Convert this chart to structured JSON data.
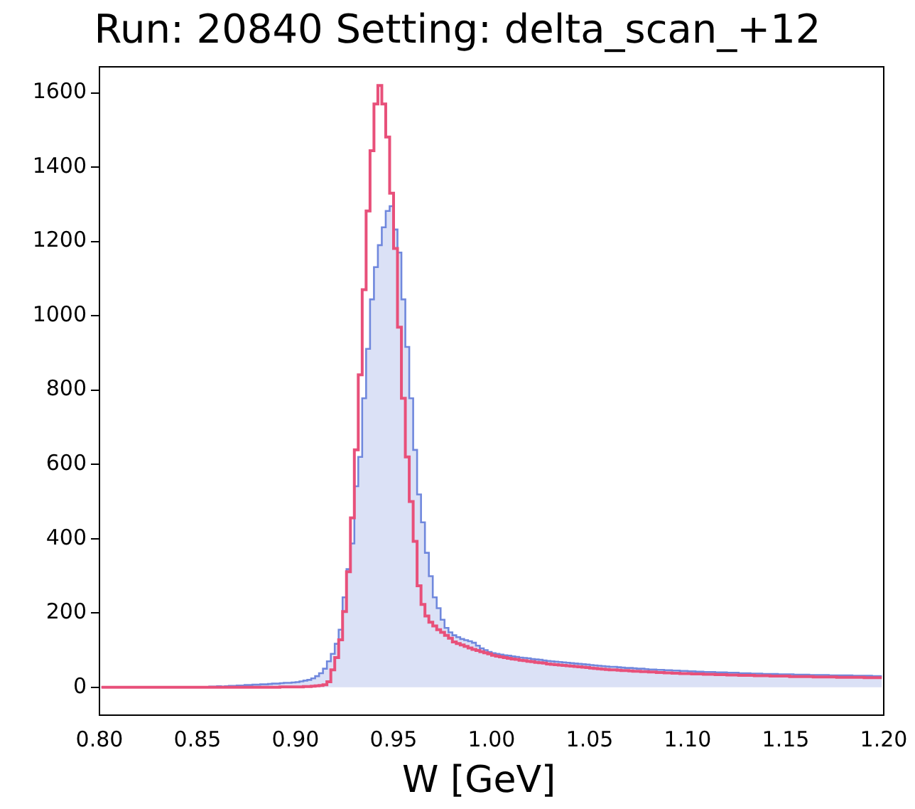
{
  "chart_data": {
    "type": "histogram",
    "title": "Run: 20840 Setting: delta_scan_+12",
    "xlabel": "W [GeV]",
    "bins": [
      0.8,
      0.802,
      0.804,
      0.806,
      0.808,
      0.81,
      0.812,
      0.814,
      0.816,
      0.818,
      0.82,
      0.822,
      0.824,
      0.826,
      0.828,
      0.83,
      0.832,
      0.834,
      0.836,
      0.838,
      0.84,
      0.842,
      0.844,
      0.846,
      0.848,
      0.85,
      0.852,
      0.854,
      0.856,
      0.858,
      0.86,
      0.862,
      0.864,
      0.866,
      0.868,
      0.87,
      0.872,
      0.874,
      0.876,
      0.878,
      0.88,
      0.882,
      0.884,
      0.886,
      0.888,
      0.89,
      0.892,
      0.894,
      0.896,
      0.898,
      0.9,
      0.902,
      0.904,
      0.906,
      0.908,
      0.91,
      0.912,
      0.914,
      0.916,
      0.918,
      0.92,
      0.922,
      0.924,
      0.926,
      0.928,
      0.93,
      0.932,
      0.934,
      0.936,
      0.938,
      0.94,
      0.942,
      0.944,
      0.946,
      0.948,
      0.95,
      0.952,
      0.954,
      0.956,
      0.958,
      0.96,
      0.962,
      0.964,
      0.966,
      0.968,
      0.97,
      0.972,
      0.974,
      0.976,
      0.978,
      0.98,
      0.982,
      0.984,
      0.986,
      0.988,
      0.99,
      0.992,
      0.994,
      0.996,
      0.998,
      1.0,
      1.002,
      1.004,
      1.006,
      1.008,
      1.01,
      1.012,
      1.014,
      1.016,
      1.018,
      1.02,
      1.022,
      1.024,
      1.026,
      1.028,
      1.03,
      1.032,
      1.034,
      1.036,
      1.038,
      1.04,
      1.042,
      1.044,
      1.046,
      1.048,
      1.05,
      1.052,
      1.054,
      1.056,
      1.058,
      1.06,
      1.062,
      1.064,
      1.066,
      1.068,
      1.07,
      1.072,
      1.074,
      1.076,
      1.078,
      1.08,
      1.082,
      1.084,
      1.086,
      1.088,
      1.09,
      1.092,
      1.094,
      1.096,
      1.098,
      1.1,
      1.102,
      1.104,
      1.106,
      1.108,
      1.11,
      1.112,
      1.114,
      1.116,
      1.118,
      1.12,
      1.122,
      1.124,
      1.126,
      1.128,
      1.13,
      1.132,
      1.134,
      1.136,
      1.138,
      1.14,
      1.142,
      1.144,
      1.146,
      1.148,
      1.15,
      1.152,
      1.154,
      1.156,
      1.158,
      1.16,
      1.162,
      1.164,
      1.166,
      1.168,
      1.17,
      1.172,
      1.174,
      1.176,
      1.178,
      1.18,
      1.182,
      1.184,
      1.186,
      1.188,
      1.19,
      1.192,
      1.194,
      1.196,
      1.198,
      1.2
    ],
    "series": [
      {
        "color": "#7088dd",
        "values": [
          0,
          0,
          0,
          0,
          0,
          0,
          0,
          0,
          0,
          0,
          0,
          0,
          0,
          0,
          0,
          0,
          0,
          0,
          0,
          0,
          0,
          0,
          0,
          0,
          0,
          1,
          0,
          1,
          2,
          2,
          3,
          2,
          3,
          4,
          4,
          5,
          5,
          6,
          6,
          7,
          7,
          8,
          8,
          9,
          10,
          10,
          11,
          12,
          12,
          13,
          14,
          16,
          18,
          20,
          24,
          30,
          38,
          50,
          70,
          90,
          117,
          155,
          242,
          318,
          387,
          541,
          620,
          778,
          911,
          1044,
          1131,
          1190,
          1238,
          1282,
          1295,
          1232,
          1170,
          1044,
          916,
          778,
          639,
          519,
          444,
          362,
          299,
          242,
          213,
          182,
          160,
          148,
          140,
          135,
          130,
          127,
          124,
          120,
          112,
          105,
          100,
          95,
          92,
          90,
          88,
          86,
          85,
          83,
          82,
          80,
          79,
          78,
          76,
          75,
          74,
          72,
          71,
          70,
          69,
          68,
          67,
          66,
          65,
          64,
          63,
          62,
          61,
          60,
          59,
          58,
          57,
          56,
          55,
          55,
          54,
          53,
          52,
          52,
          51,
          50,
          50,
          49,
          48,
          48,
          47,
          47,
          46,
          46,
          45,
          45,
          44,
          44,
          43,
          43,
          42,
          42,
          41,
          41,
          41,
          40,
          40,
          40,
          39,
          39,
          39,
          38,
          38,
          38,
          37,
          37,
          37,
          36,
          36,
          36,
          36,
          35,
          35,
          35,
          35,
          34,
          34,
          34,
          34,
          33,
          33,
          33,
          33,
          33,
          32,
          32,
          32,
          32,
          32,
          32,
          31,
          31,
          31,
          31,
          31,
          30,
          30,
          30
        ]
      },
      {
        "color": "#e8507a",
        "values": [
          0,
          0,
          0,
          0,
          0,
          0,
          0,
          0,
          0,
          0,
          0,
          0,
          0,
          0,
          0,
          0,
          0,
          0,
          0,
          0,
          0,
          0,
          0,
          0,
          0,
          0,
          0,
          0,
          0,
          0,
          0,
          0,
          0,
          0,
          0,
          0,
          0,
          0,
          0,
          0,
          0,
          0,
          0,
          0,
          0,
          0,
          1,
          1,
          1,
          1,
          1,
          1,
          2,
          2,
          3,
          4,
          5,
          7,
          15,
          47,
          80,
          128,
          204,
          311,
          456,
          639,
          841,
          1070,
          1282,
          1444,
          1570,
          1620,
          1570,
          1481,
          1330,
          1181,
          969,
          778,
          620,
          500,
          393,
          273,
          223,
          192,
          175,
          165,
          155,
          148,
          140,
          132,
          122,
          118,
          114,
          110,
          106,
          102,
          99,
          96,
          93,
          90,
          86,
          84,
          82,
          80,
          78,
          76,
          75,
          73,
          72,
          70,
          69,
          67,
          66,
          65,
          63,
          62,
          61,
          60,
          59,
          58,
          57,
          56,
          55,
          54,
          53,
          52,
          51,
          50,
          49,
          48,
          47,
          47,
          46,
          45,
          45,
          44,
          43,
          43,
          42,
          42,
          41,
          41,
          40,
          40,
          39,
          39,
          38,
          38,
          37,
          37,
          37,
          36,
          36,
          36,
          35,
          35,
          35,
          34,
          34,
          34,
          33,
          33,
          33,
          32,
          32,
          32,
          32,
          31,
          31,
          31,
          31,
          30,
          30,
          30,
          30,
          30,
          29,
          29,
          29,
          29,
          29,
          29,
          28,
          28,
          28,
          28,
          28,
          28,
          27,
          27,
          27,
          27,
          27,
          27,
          27,
          26,
          26,
          26,
          26,
          26
        ]
      }
    ],
    "xlim": [
      0.8,
      1.2
    ],
    "xticks": [
      {
        "value": 0.8,
        "label": "0.80"
      },
      {
        "value": 0.85,
        "label": "0.85"
      },
      {
        "value": 0.9,
        "label": "0.90"
      },
      {
        "value": 0.95,
        "label": "0.95"
      },
      {
        "value": 1.0,
        "label": "1.00"
      },
      {
        "value": 1.05,
        "label": "1.05"
      },
      {
        "value": 1.1,
        "label": "1.10"
      },
      {
        "value": 1.15,
        "label": "1.15"
      },
      {
        "value": 1.2,
        "label": "1.20"
      }
    ],
    "ylim": [
      -75,
      1670
    ],
    "yticks": [
      0,
      200,
      400,
      600,
      800,
      1000,
      1200,
      1400,
      1600
    ],
    "grid": false,
    "legend": false
  }
}
